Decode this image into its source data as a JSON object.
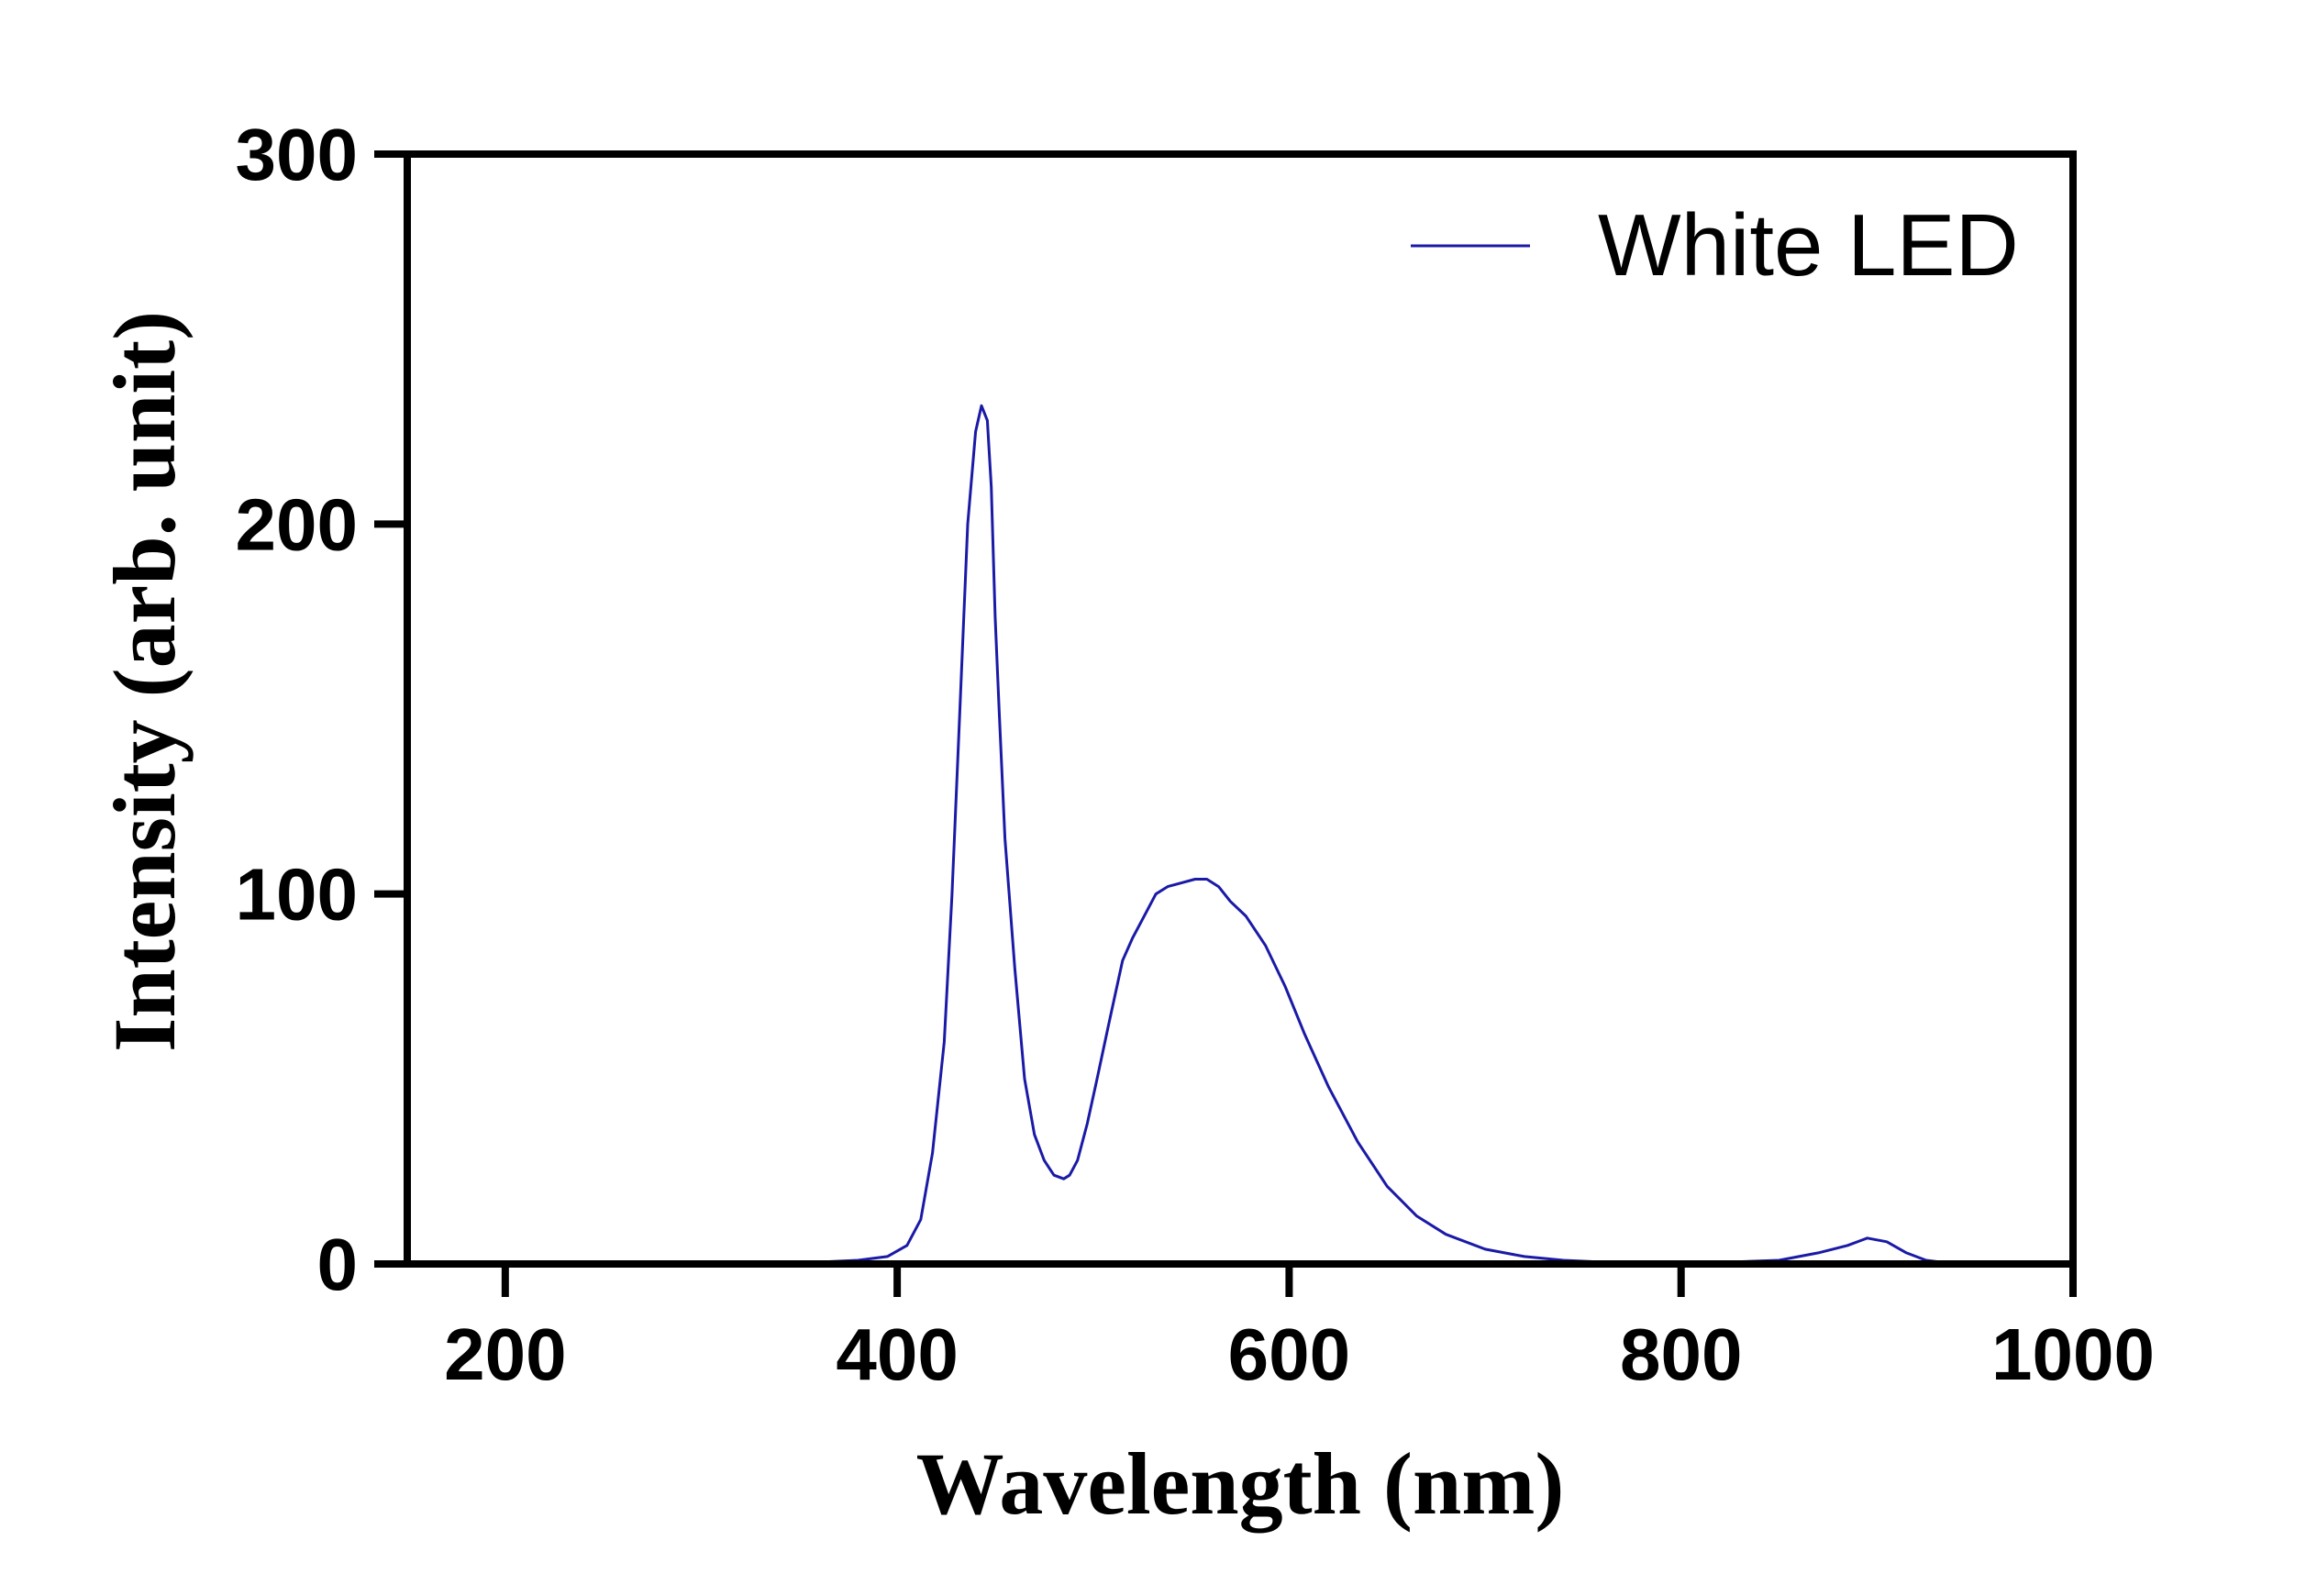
{
  "chart_data": {
    "type": "line",
    "title": "",
    "xlabel": "Wavelength (nm)",
    "ylabel": "Intensity (arb. unit)",
    "xlim": [
      150,
      1000
    ],
    "ylim": [
      0,
      300
    ],
    "xticks": [
      200,
      400,
      600,
      800,
      1000
    ],
    "yticks": [
      0,
      100,
      200,
      300
    ],
    "xtick_labels": [
      "200",
      "400",
      "600",
      "800",
      "1000"
    ],
    "ytick_labels": [
      "0",
      "100",
      "200",
      "300"
    ],
    "grid": false,
    "legend_position": "top-right",
    "series": [
      {
        "name": "White LED",
        "color": "#1a1aa6",
        "x": [
          150,
          300,
          360,
          380,
          395,
          405,
          412,
          418,
          424,
          428,
          432,
          436,
          440,
          443,
          446,
          448,
          450,
          452,
          455,
          460,
          465,
          470,
          475,
          480,
          485,
          488,
          492,
          497,
          502,
          508,
          515,
          520,
          526,
          532,
          538,
          545,
          552,
          558,
          564,
          570,
          578,
          588,
          598,
          608,
          620,
          635,
          650,
          665,
          680,
          700,
          720,
          740,
          760,
          800,
          850,
          870,
          885,
          895,
          905,
          915,
          925,
          940,
          1000
        ],
        "y": [
          0,
          0,
          0.5,
          1,
          2,
          5,
          12,
          30,
          60,
          100,
          150,
          200,
          225,
          232,
          228,
          210,
          175,
          150,
          115,
          80,
          50,
          35,
          28,
          24,
          23,
          24,
          28,
          38,
          50,
          65,
          82,
          88,
          94,
          100,
          102,
          103,
          104,
          104,
          102,
          98,
          94,
          86,
          75,
          62,
          48,
          33,
          21,
          13,
          8,
          4,
          2,
          1,
          0.5,
          0,
          1,
          3,
          5,
          7,
          6,
          3,
          1,
          0,
          0
        ]
      }
    ]
  }
}
